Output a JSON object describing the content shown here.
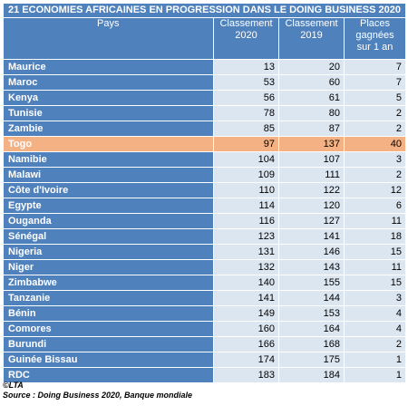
{
  "title": "21 ECONOMIES AFRICAINES EN PROGRESSION DANS LE DOING BUSINESS 2020",
  "headers": {
    "pays": "Pays",
    "c2020": "Classement 2020",
    "c2019": "Classement 2019",
    "places": "Places gagnées sur 1 an"
  },
  "rows": [
    {
      "pays": "Maurice",
      "c2020": "13",
      "c2019": "20",
      "places": "7"
    },
    {
      "pays": "Maroc",
      "c2020": "53",
      "c2019": "60",
      "places": "7"
    },
    {
      "pays": "Kenya",
      "c2020": "56",
      "c2019": "61",
      "places": "5"
    },
    {
      "pays": "Tunisie",
      "c2020": "78",
      "c2019": "80",
      "places": "2"
    },
    {
      "pays": "Zambie",
      "c2020": "85",
      "c2019": "87",
      "places": "2"
    },
    {
      "pays": "Togo",
      "c2020": "97",
      "c2019": "137",
      "places": "40"
    },
    {
      "pays": "Namibie",
      "c2020": "104",
      "c2019": "107",
      "places": "3"
    },
    {
      "pays": "Malawi",
      "c2020": "109",
      "c2019": "111",
      "places": "2"
    },
    {
      "pays": "Côte d'Ivoire",
      "c2020": "110",
      "c2019": "122",
      "places": "12"
    },
    {
      "pays": "Egypte",
      "c2020": "114",
      "c2019": "120",
      "places": "6"
    },
    {
      "pays": "Ouganda",
      "c2020": "116",
      "c2019": "127",
      "places": "11"
    },
    {
      "pays": "Sénégal",
      "c2020": "123",
      "c2019": "141",
      "places": "18"
    },
    {
      "pays": "Nigeria",
      "c2020": "131",
      "c2019": "146",
      "places": "15"
    },
    {
      "pays": "Niger",
      "c2020": "132",
      "c2019": "143",
      "places": "11"
    },
    {
      "pays": "Zimbabwe",
      "c2020": "140",
      "c2019": "155",
      "places": "15"
    },
    {
      "pays": "Tanzanie",
      "c2020": "141",
      "c2019": "144",
      "places": "3"
    },
    {
      "pays": "Bénin",
      "c2020": "149",
      "c2019": "153",
      "places": "4"
    },
    {
      "pays": "Comores",
      "c2020": "160",
      "c2019": "164",
      "places": "4"
    },
    {
      "pays": "Burundi",
      "c2020": "166",
      "c2019": "168",
      "places": "2"
    },
    {
      "pays": "Guinée Bissau",
      "c2020": "174",
      "c2019": "175",
      "places": "1"
    },
    {
      "pays": "RDC",
      "c2020": "183",
      "c2019": "184",
      "places": "1"
    }
  ],
  "highlight_country": "Togo",
  "colors": {
    "header": "#4f81bd",
    "cell": "#dce6f1",
    "highlight": "#f4b183"
  },
  "footer": {
    "credit": "©LTA",
    "source": "Source : Doing Business 2020, Banque mondiale"
  }
}
